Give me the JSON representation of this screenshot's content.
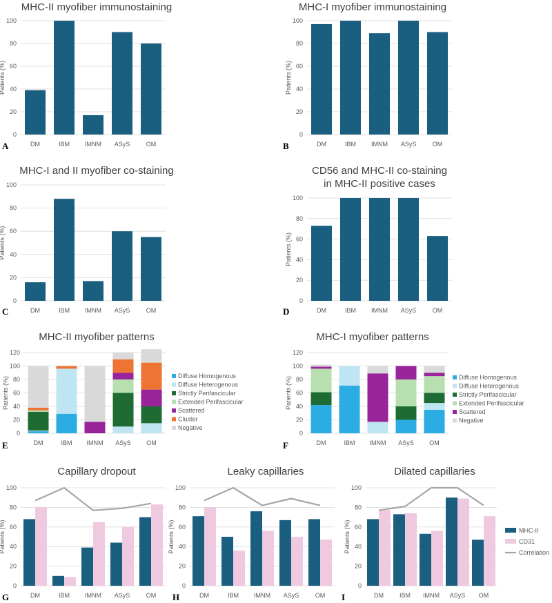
{
  "ylabel": "Patients (%)",
  "palette": {
    "bar": "#1a5e80",
    "cd31": "#eec9df",
    "corr": "#a6a6a6",
    "diffuse_homogenous": "#2bace2",
    "diffuse_heterogenous": "#bfe4f2",
    "strictly_perifascicular": "#1e6b33",
    "extended_perifascicular": "#b7dfb0",
    "scattered": "#98239a",
    "cluster": "#ee7434",
    "negative": "#d9d9d9"
  },
  "chart_data": [
    {
      "id": "A",
      "type": "bar",
      "title": [
        "MHC-II myofiber immunostaining"
      ],
      "ylabel": "Patients (%)",
      "ylim": [
        0,
        100
      ],
      "yticks": [
        0,
        20,
        40,
        60,
        80,
        100
      ],
      "categories": [
        "DM",
        "IBM",
        "IMNM",
        "ASyS",
        "OM"
      ],
      "values": [
        39,
        100,
        17,
        90,
        80
      ]
    },
    {
      "id": "B",
      "type": "bar",
      "title": [
        "MHC-I myofiber immunostaining"
      ],
      "ylabel": "Patients (%)",
      "ylim": [
        0,
        100
      ],
      "yticks": [
        0,
        20,
        40,
        60,
        80,
        100
      ],
      "categories": [
        "DM",
        "IBM",
        "IMNM",
        "ASyS",
        "OM"
      ],
      "values": [
        97,
        100,
        89,
        100,
        90
      ]
    },
    {
      "id": "C",
      "type": "bar",
      "title": [
        "MHC-I and II myofiber co-staining"
      ],
      "ylabel": "Patients (%)",
      "ylim": [
        0,
        100
      ],
      "yticks": [
        0,
        20,
        40,
        60,
        80,
        100
      ],
      "categories": [
        "DM",
        "IBM",
        "IMNM",
        "ASyS",
        "OM"
      ],
      "values": [
        16,
        88,
        17,
        60,
        55
      ]
    },
    {
      "id": "D",
      "type": "bar",
      "title": [
        "CD56 and MHC-II co-staining",
        "in MHC-II positive cases"
      ],
      "ylabel": "Patients (%)",
      "ylim": [
        0,
        100
      ],
      "yticks": [
        0,
        20,
        40,
        60,
        80,
        100
      ],
      "categories": [
        "DM",
        "IBM",
        "IMNM",
        "ASyS",
        "OM"
      ],
      "values": [
        73,
        100,
        100,
        100,
        63
      ]
    },
    {
      "id": "E",
      "type": "stacked-bar",
      "title": [
        "MHC-II myofiber patterns"
      ],
      "ylabel": "Patients (%)",
      "ylim": [
        0,
        120
      ],
      "yticks": [
        0,
        20,
        40,
        60,
        80,
        100,
        120
      ],
      "categories": [
        "DM",
        "IBM",
        "IMNM",
        "ASyS",
        "OM"
      ],
      "series": [
        {
          "name": "Diffuse Homogenous",
          "key": "diffuse_homogenous",
          "values": [
            3,
            29,
            0,
            0,
            0
          ]
        },
        {
          "name": "Diffuse Heterogenous",
          "key": "diffuse_heterogenous",
          "values": [
            1,
            67,
            0,
            10,
            15
          ]
        },
        {
          "name": "Strictly Perifascicular",
          "key": "strictly_perifascicular",
          "values": [
            28,
            0,
            0,
            50,
            25
          ]
        },
        {
          "name": "Extended Perifascicular",
          "key": "extended_perifascicular",
          "values": [
            2,
            0,
            0,
            20,
            0
          ]
        },
        {
          "name": "Scattered",
          "key": "scattered",
          "values": [
            0,
            0,
            17,
            10,
            25
          ]
        },
        {
          "name": "Cluster",
          "key": "cluster",
          "values": [
            4,
            4,
            0,
            20,
            40
          ]
        },
        {
          "name": "Negative",
          "key": "negative",
          "values": [
            62,
            0,
            83,
            10,
            20
          ]
        }
      ]
    },
    {
      "id": "F",
      "type": "stacked-bar",
      "title": [
        "MHC-I myofiber patterns"
      ],
      "ylabel": "Patients (%)",
      "ylim": [
        0,
        120
      ],
      "yticks": [
        0,
        20,
        40,
        60,
        80,
        100,
        120
      ],
      "categories": [
        "DM",
        "IBM",
        "IMNM",
        "ASyS",
        "OM"
      ],
      "series": [
        {
          "name": "Diffuse Homogenous",
          "key": "diffuse_homogenous",
          "values": [
            42,
            71,
            0,
            20,
            35
          ]
        },
        {
          "name": "Diffuse Heterogenous",
          "key": "diffuse_heterogenous",
          "values": [
            0,
            29,
            17,
            0,
            10
          ]
        },
        {
          "name": "Strictly Perifascicular",
          "key": "strictly_perifascicular",
          "values": [
            19,
            0,
            0,
            20,
            15
          ]
        },
        {
          "name": "Extended Perifascicular",
          "key": "extended_perifascicular",
          "values": [
            35,
            0,
            0,
            40,
            25
          ]
        },
        {
          "name": "Scattered",
          "key": "scattered",
          "values": [
            3,
            0,
            72,
            20,
            5
          ]
        },
        {
          "name": "Negative",
          "key": "negative",
          "values": [
            3,
            0,
            11,
            0,
            10
          ]
        }
      ]
    },
    {
      "id": "G",
      "type": "bar-line",
      "title": [
        "Capillary dropout"
      ],
      "ylabel": "Patients (%)",
      "ylim": [
        0,
        100
      ],
      "yticks": [
        0,
        20,
        40,
        60,
        80,
        100
      ],
      "categories": [
        "DM",
        "IBM",
        "IMNM",
        "ASyS",
        "OM"
      ],
      "series": [
        {
          "name": "MHC-II",
          "key": "bar",
          "values": [
            68,
            10,
            39,
            44,
            70
          ]
        },
        {
          "name": "CD31",
          "key": "cd31",
          "values": [
            80,
            9,
            65,
            60,
            83
          ]
        }
      ],
      "line": {
        "name": "Correlation",
        "key": "corr",
        "values": [
          87,
          100,
          77,
          79,
          84
        ]
      }
    },
    {
      "id": "H",
      "type": "bar-line",
      "title": [
        "Leaky capillaries"
      ],
      "ylabel": "Patients (%)",
      "ylim": [
        0,
        100
      ],
      "yticks": [
        0,
        20,
        40,
        60,
        80,
        100
      ],
      "categories": [
        "DM",
        "IBM",
        "IMNM",
        "ASyS",
        "OM"
      ],
      "series": [
        {
          "name": "MHC-II",
          "key": "bar",
          "values": [
            71,
            50,
            76,
            67,
            68
          ]
        },
        {
          "name": "CD31",
          "key": "cd31",
          "values": [
            80,
            36,
            56,
            50,
            47
          ]
        }
      ],
      "line": {
        "name": "Correlation",
        "key": "corr",
        "values": [
          87,
          100,
          82,
          89,
          82
        ]
      }
    },
    {
      "id": "I",
      "type": "bar-line",
      "title": [
        "Dilated capillaries"
      ],
      "ylabel": "Patients (%)",
      "ylim": [
        0,
        100
      ],
      "yticks": [
        0,
        20,
        40,
        60,
        80,
        100
      ],
      "categories": [
        "DM",
        "IBM",
        "IMNM",
        "ASyS",
        "OM"
      ],
      "series": [
        {
          "name": "MHC-II",
          "key": "bar",
          "values": [
            68,
            73,
            53,
            90,
            47
          ]
        },
        {
          "name": "CD31",
          "key": "cd31",
          "values": [
            77,
            74,
            56,
            89,
            71
          ]
        }
      ],
      "line": {
        "name": "Correlation",
        "key": "corr",
        "values": [
          77,
          81,
          100,
          100,
          82
        ]
      },
      "legend": [
        "MHC-II",
        "CD31",
        "Correlation"
      ]
    }
  ]
}
